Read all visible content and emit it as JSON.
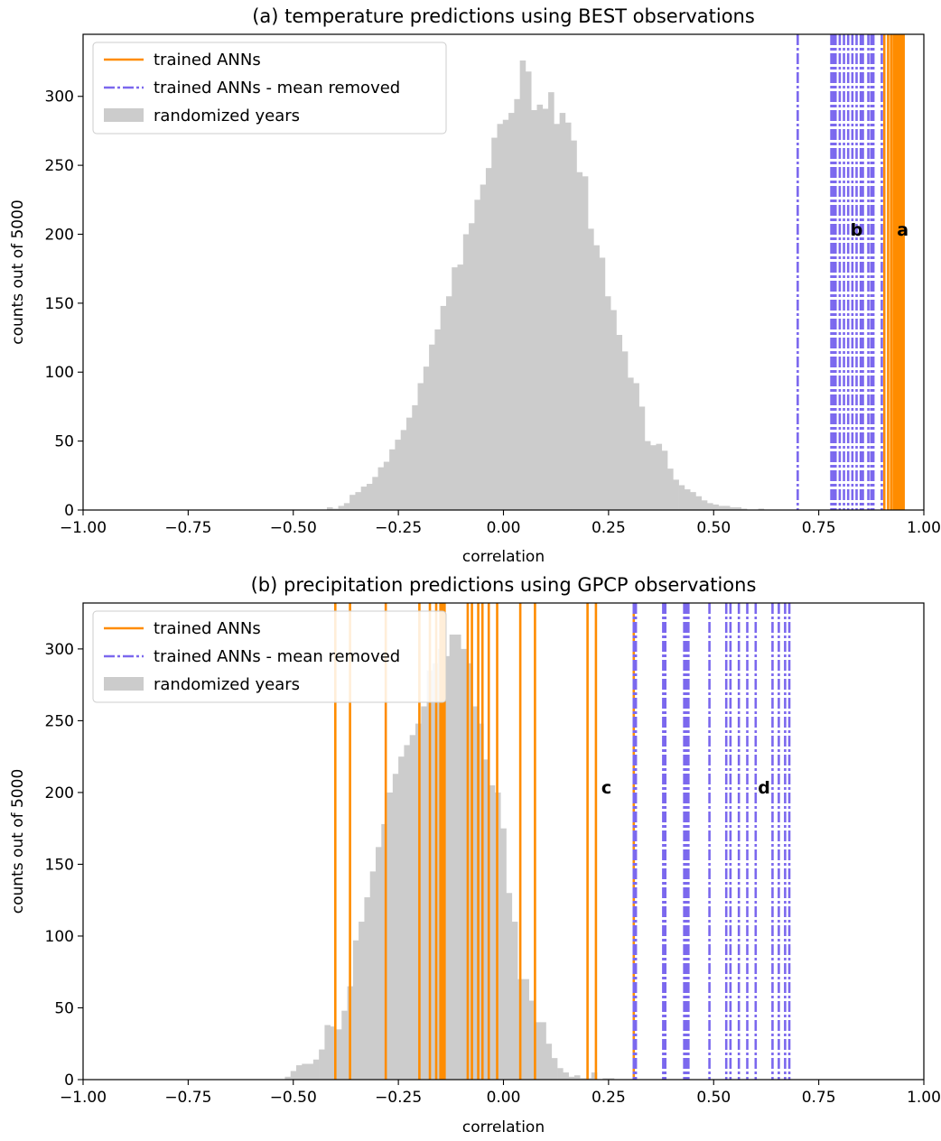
{
  "chart_data": [
    {
      "type": "histogram",
      "title": "(a) temperature predictions using BEST observations",
      "xlabel": "correlation",
      "ylabel": "counts out of 5000",
      "xlim": [
        -1.0,
        1.0
      ],
      "ylim": [
        0,
        345
      ],
      "xticks": [
        -1.0,
        -0.75,
        -0.5,
        -0.25,
        0.0,
        0.25,
        0.5,
        0.75,
        1.0
      ],
      "xtick_labels": [
        "−1.00",
        "−0.75",
        "−0.50",
        "−0.25",
        "0.00",
        "0.25",
        "0.50",
        "0.75",
        "1.00"
      ],
      "yticks": [
        0,
        50,
        100,
        150,
        200,
        250,
        300
      ],
      "ytick_labels": [
        "0",
        "50",
        "100",
        "150",
        "200",
        "250",
        "300"
      ],
      "legend": {
        "position": "upper-left",
        "entries": [
          {
            "label": "trained ANNs",
            "style": "solid",
            "color": "#ff8c00"
          },
          {
            "label": "trained ANNs - mean removed",
            "style": "dashdot",
            "color": "#7b68ee"
          },
          {
            "label": "randomized years",
            "style": "patch",
            "color": "#cccccc"
          }
        ]
      },
      "histogram": {
        "name": "randomized years",
        "bin_start": -0.42,
        "bin_width": 0.0135,
        "counts": [
          2,
          1,
          3,
          5,
          11,
          13,
          17,
          19,
          24,
          31,
          35,
          44,
          51,
          58,
          67,
          76,
          92,
          104,
          120,
          131,
          148,
          155,
          176,
          178,
          200,
          208,
          225,
          236,
          248,
          270,
          280,
          283,
          288,
          298,
          326,
          318,
          290,
          294,
          291,
          303,
          280,
          288,
          281,
          268,
          245,
          242,
          204,
          192,
          183,
          155,
          145,
          127,
          115,
          96,
          92,
          75,
          50,
          47,
          48,
          43,
          30,
          22,
          18,
          15,
          13,
          10,
          7,
          5,
          4,
          3,
          3,
          2,
          2,
          1,
          0,
          0,
          1,
          0,
          0,
          0,
          0,
          0
        ]
      },
      "trained_anns": [
        0.915,
        0.922,
        0.928,
        0.933,
        0.937,
        0.94,
        0.944,
        0.948,
        0.952,
        0.906
      ],
      "mean_removed": [
        0.7,
        0.78,
        0.785,
        0.79,
        0.8,
        0.81,
        0.82,
        0.83,
        0.84,
        0.85,
        0.855,
        0.868,
        0.875,
        0.88,
        0.9
      ],
      "annotations": [
        {
          "text": "b",
          "x": 0.84,
          "y": 203
        },
        {
          "text": "a",
          "x": 0.95,
          "y": 203
        }
      ]
    },
    {
      "type": "histogram",
      "title": "(b) precipitation predictions using GPCP observations",
      "xlabel": "correlation",
      "ylabel": "counts out of 5000",
      "xlim": [
        -1.0,
        1.0
      ],
      "ylim": [
        0,
        332
      ],
      "xticks": [
        -1.0,
        -0.75,
        -0.5,
        -0.25,
        0.0,
        0.25,
        0.5,
        0.75,
        1.0
      ],
      "xtick_labels": [
        "−1.00",
        "−0.75",
        "−0.50",
        "−0.25",
        "0.00",
        "0.25",
        "0.50",
        "0.75",
        "1.00"
      ],
      "yticks": [
        0,
        50,
        100,
        150,
        200,
        250,
        300
      ],
      "ytick_labels": [
        "0",
        "50",
        "100",
        "150",
        "200",
        "250",
        "300"
      ],
      "legend": {
        "position": "upper-left",
        "entries": [
          {
            "label": "trained ANNs",
            "style": "solid",
            "color": "#ff8c00"
          },
          {
            "label": "trained ANNs - mean removed",
            "style": "dashdot",
            "color": "#7b68ee"
          },
          {
            "label": "randomized years",
            "style": "patch",
            "color": "#cccccc"
          }
        ]
      },
      "histogram": {
        "name": "randomized years",
        "bin_start": -0.52,
        "bin_width": 0.0135,
        "counts": [
          2,
          6,
          10,
          11,
          11,
          14,
          21,
          38,
          37,
          35,
          48,
          65,
          97,
          110,
          127,
          145,
          162,
          178,
          200,
          213,
          225,
          233,
          240,
          248,
          260,
          285,
          290,
          300,
          295,
          310,
          310,
          300,
          290,
          260,
          248,
          223,
          205,
          200,
          175,
          130,
          110,
          70,
          70,
          55,
          40,
          40,
          25,
          15,
          8,
          5,
          2,
          3,
          1,
          1,
          5,
          0,
          1,
          1
        ]
      },
      "trained_anns": [
        -0.4,
        -0.365,
        -0.28,
        -0.2,
        -0.175,
        -0.16,
        -0.15,
        -0.145,
        -0.14,
        -0.085,
        -0.075,
        -0.06,
        -0.05,
        -0.035,
        -0.015,
        0.04,
        0.075,
        0.2,
        0.22,
        0.31
      ],
      "mean_removed": [
        0.31,
        0.315,
        0.38,
        0.385,
        0.43,
        0.435,
        0.44,
        0.49,
        0.53,
        0.54,
        0.56,
        0.58,
        0.6,
        0.64,
        0.655,
        0.67,
        0.68
      ],
      "annotations": [
        {
          "text": "c",
          "x": 0.245,
          "y": 203
        },
        {
          "text": "d",
          "x": 0.62,
          "y": 203
        }
      ]
    }
  ]
}
